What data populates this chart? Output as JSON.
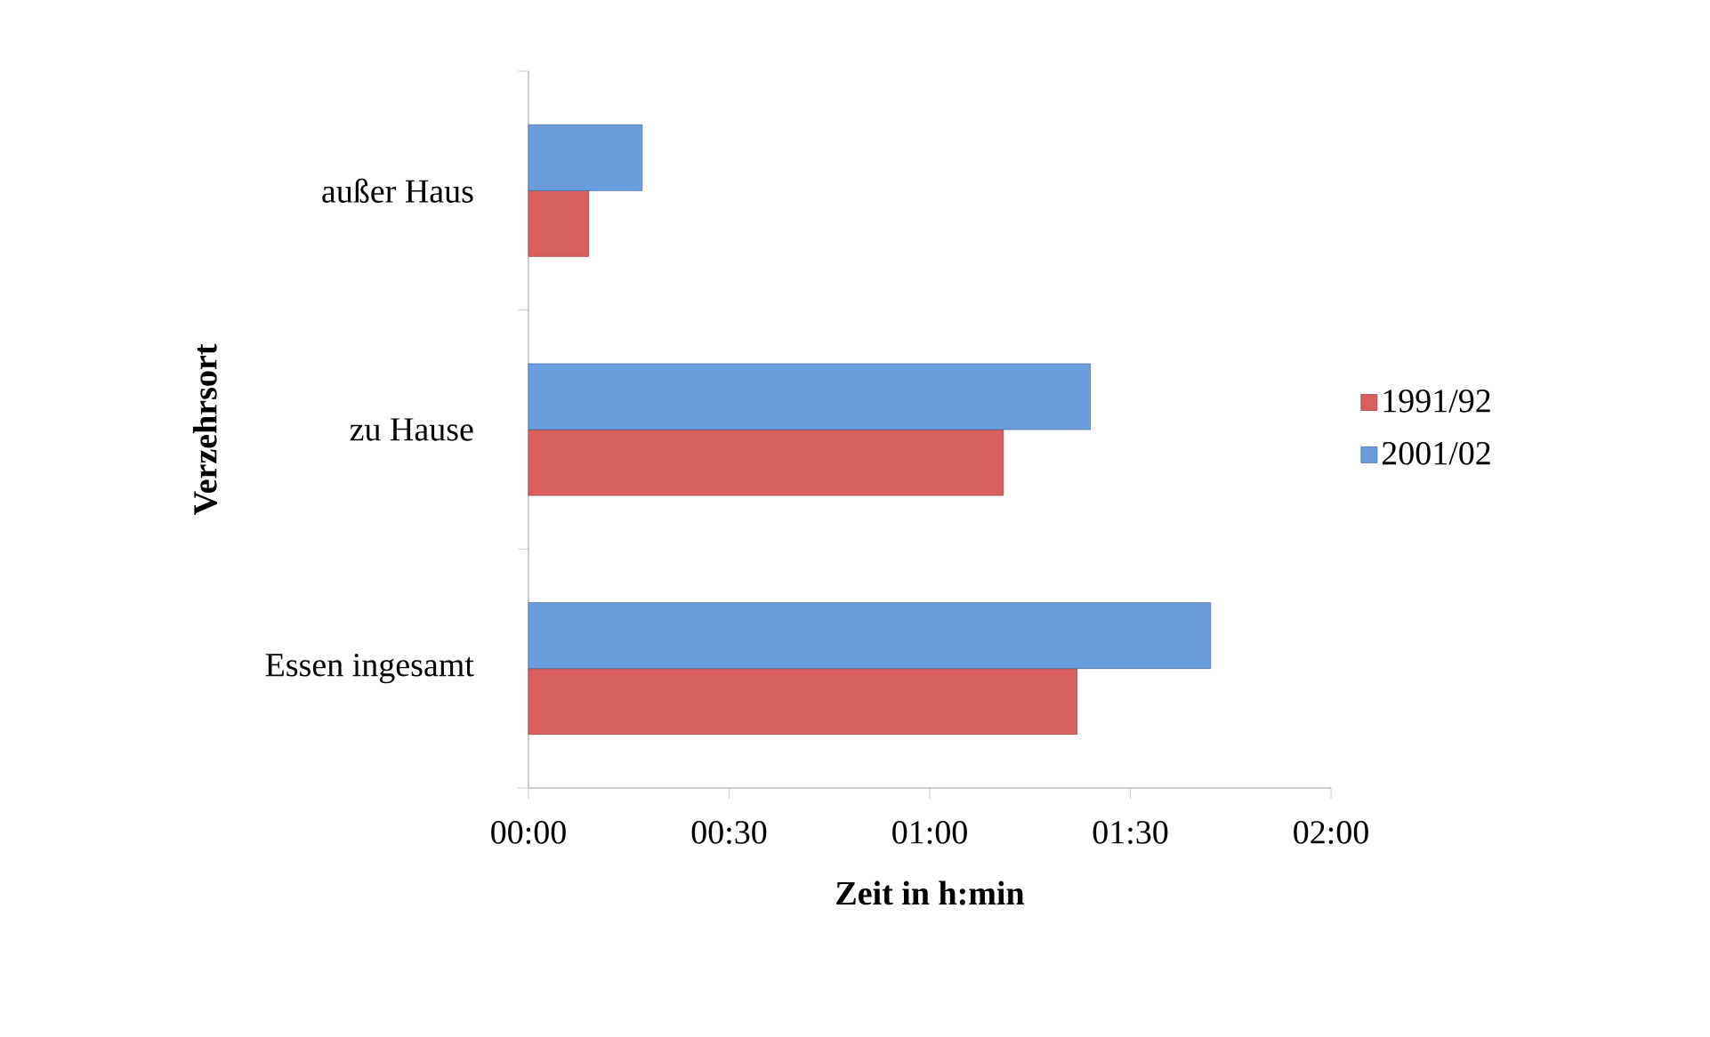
{
  "chart_data": {
    "type": "bar",
    "orientation": "horizontal",
    "categories": [
      "außer Haus",
      "zu Hause",
      "Essen ingesamt"
    ],
    "series": [
      {
        "name": "1991/92",
        "color": "#d9605d",
        "values": [
          9,
          71,
          82
        ]
      },
      {
        "name": "2001/02",
        "color": "#6a9edf",
        "values": [
          17,
          84,
          102
        ]
      }
    ],
    "xlim": [
      0,
      120
    ],
    "xticks": [
      {
        "value": 0,
        "label": "00:00"
      },
      {
        "value": 30,
        "label": "00:30"
      },
      {
        "value": 60,
        "label": "01:00"
      },
      {
        "value": 90,
        "label": "01:30"
      },
      {
        "value": 120,
        "label": "02:00"
      }
    ],
    "xlabel": "Zeit in h:min",
    "ylabel": "Verzehrsort",
    "legend": "right"
  }
}
